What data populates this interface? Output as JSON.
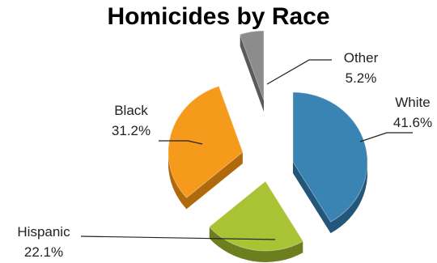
{
  "chart_data": {
    "type": "pie",
    "title": "Homicides by Race",
    "slices": [
      {
        "label": "White",
        "value": 41.6,
        "percent_label": "41.6%",
        "color": "#3a84b3",
        "side": "#24577a"
      },
      {
        "label": "Hispanic",
        "value": 22.1,
        "percent_label": "22.1%",
        "color": "#a9c335",
        "side": "#6d7e1e"
      },
      {
        "label": "Black",
        "value": 31.2,
        "percent_label": "31.2%",
        "color": "#f59a1b",
        "side": "#b06a0c"
      },
      {
        "label": "Other",
        "value": 5.2,
        "percent_label": "5.2%",
        "color": "#8c8c8c",
        "side": "#5a5a5a"
      }
    ],
    "style": "3d-exploded",
    "legend": "none",
    "grid": false
  }
}
